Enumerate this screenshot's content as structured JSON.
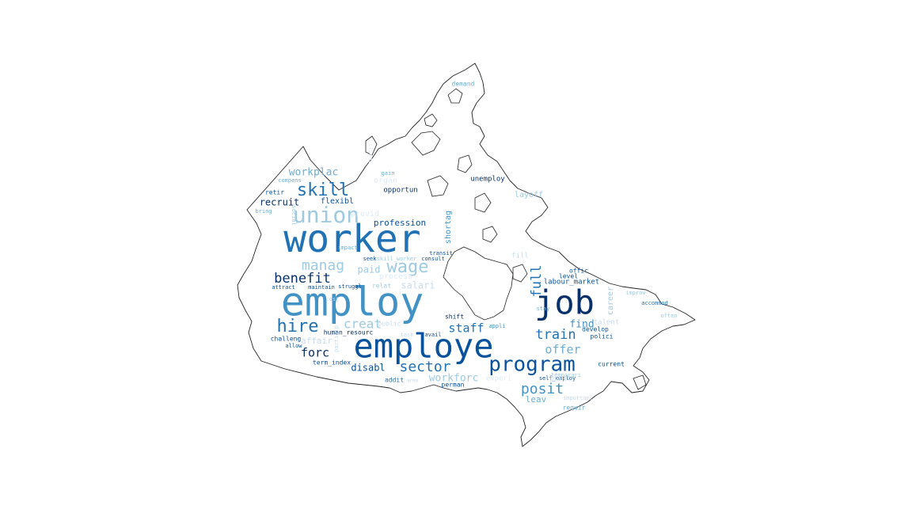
{
  "palette": {
    "c1": "#08306b",
    "c2": "#08519c",
    "c3": "#2171b5",
    "c4": "#4292c6",
    "c5": "#6baed6",
    "c6": "#9ecae1",
    "c7": "#c6dbef",
    "c8": "#deebf7"
  },
  "words": [
    {
      "text": "worker",
      "color": "c3"
    },
    {
      "text": "employ",
      "color": "c4"
    },
    {
      "text": "employe",
      "color": "c2"
    },
    {
      "text": "job",
      "color": "c1"
    },
    {
      "text": "program",
      "color": "c2"
    },
    {
      "text": "union",
      "color": "c6"
    },
    {
      "text": "skill",
      "color": "c3"
    },
    {
      "text": "hire",
      "color": "c3"
    },
    {
      "text": "wage",
      "color": "c6"
    },
    {
      "text": "manag",
      "color": "c6"
    },
    {
      "text": "benefit",
      "color": "c1"
    },
    {
      "text": "sector",
      "color": "c3"
    },
    {
      "text": "posit",
      "color": "c4"
    },
    {
      "text": "train",
      "color": "c3"
    },
    {
      "text": "offer",
      "color": "c5"
    },
    {
      "text": "staff",
      "color": "c3"
    },
    {
      "text": "full",
      "color": "c3"
    },
    {
      "text": "creat",
      "color": "c6"
    },
    {
      "text": "forc",
      "color": "c1"
    },
    {
      "text": "workforc",
      "color": "c6"
    },
    {
      "text": "workplac",
      "color": "c5"
    },
    {
      "text": "recruit",
      "color": "c1"
    },
    {
      "text": "flexibl",
      "color": "c2"
    },
    {
      "text": "profession",
      "color": "c2"
    },
    {
      "text": "disabl",
      "color": "c2"
    },
    {
      "text": "find",
      "color": "c4"
    },
    {
      "text": "leav",
      "color": "c5"
    },
    {
      "text": "paid",
      "color": "c6"
    },
    {
      "text": "salari",
      "color": "c7"
    },
    {
      "text": "shortag",
      "color": "c4"
    },
    {
      "text": "labour_market",
      "color": "c2"
    },
    {
      "text": "unemploy",
      "color": "c1"
    },
    {
      "text": "opportun",
      "color": "c1"
    },
    {
      "text": "layoff",
      "color": "c6"
    },
    {
      "text": "affair",
      "color": "c7"
    },
    {
      "text": "career",
      "color": "c6"
    },
    {
      "text": "current",
      "color": "c2"
    },
    {
      "text": "offic",
      "color": "c2"
    },
    {
      "text": "level",
      "color": "c2"
    },
    {
      "text": "develop",
      "color": "c2"
    },
    {
      "text": "polici",
      "color": "c2"
    },
    {
      "text": "talent",
      "color": "c7"
    },
    {
      "text": "shift",
      "color": "c1"
    },
    {
      "text": "human_resourc",
      "color": "c1"
    },
    {
      "text": "term_index",
      "color": "c2"
    },
    {
      "text": "challeng",
      "color": "c2"
    },
    {
      "text": "allow",
      "color": "c2"
    },
    {
      "text": "struggl",
      "color": "c2"
    },
    {
      "text": "maintain",
      "color": "c2"
    },
    {
      "text": "attract",
      "color": "c2"
    },
    {
      "text": "relat",
      "color": "c6"
    },
    {
      "text": "seek",
      "color": "c2"
    },
    {
      "text": "skill_worker",
      "color": "c6"
    },
    {
      "text": "consult",
      "color": "c2"
    },
    {
      "text": "transit",
      "color": "c2"
    },
    {
      "text": "impact",
      "color": "c5"
    },
    {
      "text": "retir",
      "color": "c2"
    },
    {
      "text": "compens",
      "color": "c5"
    },
    {
      "text": "bring",
      "color": "c5"
    },
    {
      "text": "social",
      "color": "c6"
    },
    {
      "text": "gain",
      "color": "c5"
    },
    {
      "text": "organ",
      "color": "c8"
    },
    {
      "text": "demand",
      "color": "c5"
    },
    {
      "text": "addit",
      "color": "c3"
    },
    {
      "text": "perman",
      "color": "c2"
    },
    {
      "text": "self_employ",
      "color": "c2"
    },
    {
      "text": "temporari",
      "color": "c6"
    },
    {
      "text": "requir",
      "color": "c5"
    },
    {
      "text": "importanc",
      "color": "c7"
    },
    {
      "text": "improv",
      "color": "c6"
    },
    {
      "text": "accommod",
      "color": "c3"
    },
    {
      "text": "often",
      "color": "c6"
    },
    {
      "text": "stay",
      "color": "c5"
    },
    {
      "text": "appli",
      "color": "c4"
    },
    {
      "text": "avail",
      "color": "c2"
    },
    {
      "text": "fill",
      "color": "c7"
    },
    {
      "text": "experi",
      "color": "c8"
    },
    {
      "text": "public",
      "color": "c7"
    },
    {
      "text": "area",
      "color": "c7"
    },
    {
      "text": "provid",
      "color": "c8"
    },
    {
      "text": "posit",
      "color": "c7"
    },
    {
      "text": "task",
      "color": "c7"
    },
    {
      "text": "particip",
      "color": "c7"
    },
    {
      "text": "process",
      "color": "c8"
    },
    {
      "text": "client",
      "color": "c8"
    },
    {
      "text": "cost",
      "color": "c7"
    }
  ]
}
